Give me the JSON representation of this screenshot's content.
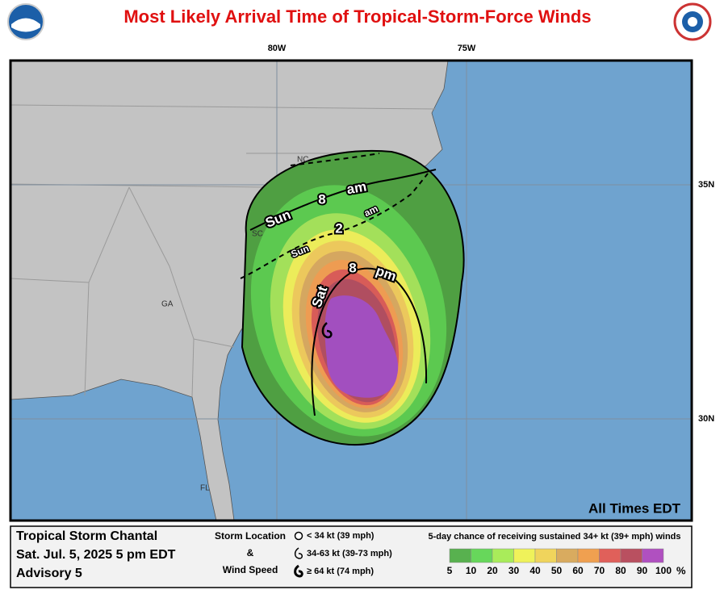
{
  "header": {
    "title": "Most Likely Arrival Time of Tropical-Storm-Force Winds"
  },
  "map": {
    "lon_labels": [
      "80W",
      "75W"
    ],
    "lat_labels": [
      "35N",
      "30N"
    ],
    "state_labels": [
      "NC",
      "SC",
      "GA",
      "FL"
    ],
    "time_labels": [
      "Sun",
      "8",
      "am",
      "Sun",
      "2",
      "am",
      "Sat",
      "8",
      "pm"
    ],
    "note": "All Times EDT"
  },
  "footer": {
    "storm": [
      "Tropical Storm Chantal",
      "Sat. Jul. 5, 2025  5 pm EDT",
      "Advisory 5"
    ],
    "key_title": [
      "Storm Location",
      "&",
      "Wind Speed"
    ],
    "key_items": [
      "< 34 kt (39 mph)",
      "34-63 kt (39-73 mph)",
      "≥ 64 kt (74 mph)"
    ],
    "scale_title": "5-day chance of receiving sustained 34+ kt (39+ mph) winds",
    "scale_labels": [
      5,
      10,
      20,
      30,
      40,
      50,
      60,
      70,
      80,
      90,
      100
    ],
    "scale_unit": "%",
    "scale_colors": [
      "#58b14f",
      "#67d75b",
      "#a9ec5a",
      "#eff25a",
      "#f0d45c",
      "#d9ab5f",
      "#f0a050",
      "#e0605a",
      "#b95060",
      "#b050c0"
    ]
  }
}
